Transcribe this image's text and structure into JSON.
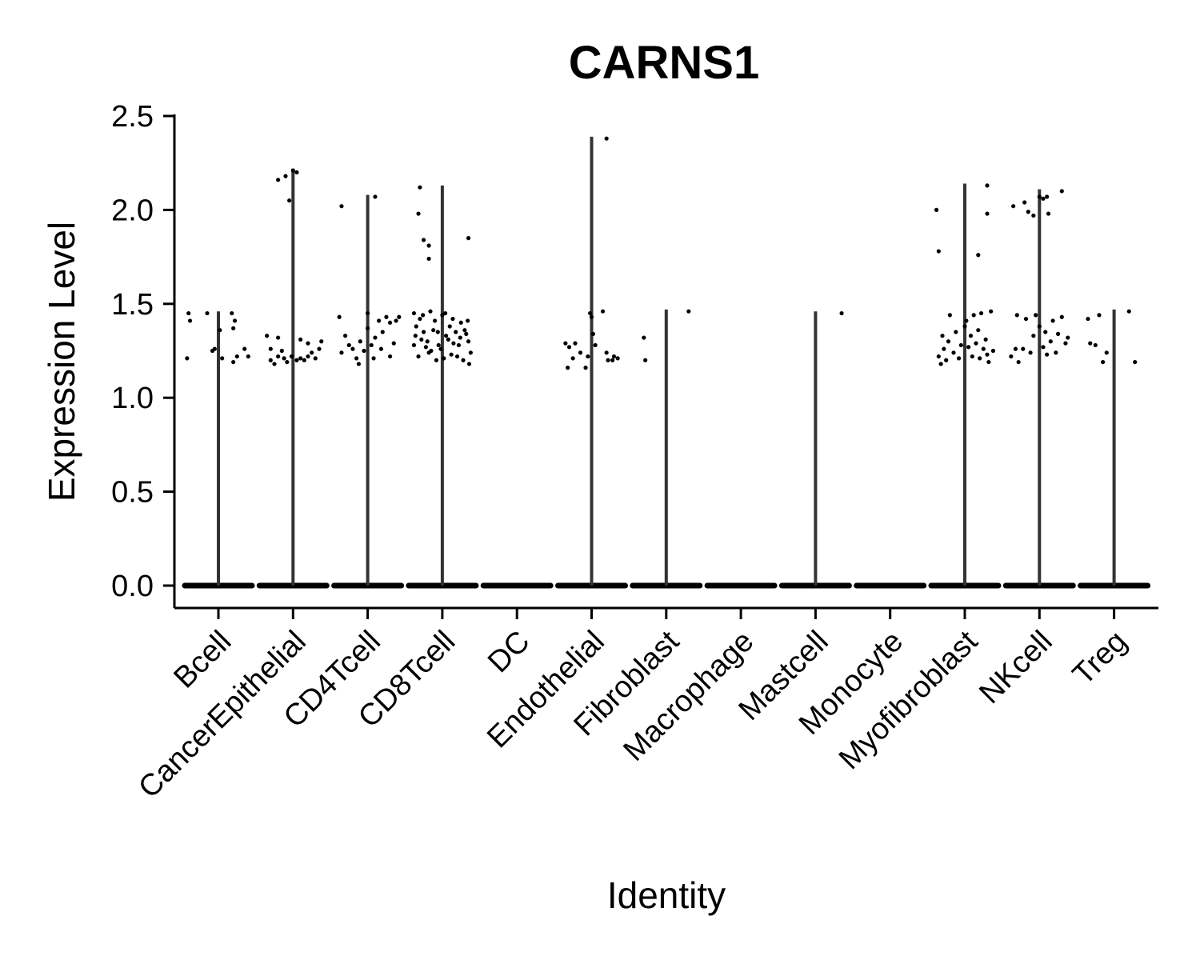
{
  "chart_data": {
    "type": "violin",
    "title": "CARNS1",
    "xlabel": "Identity",
    "ylabel": "Expression Level",
    "ylim": [
      -0.12,
      2.5
    ],
    "yticks": [
      0.0,
      0.5,
      1.0,
      1.5,
      2.0,
      2.5
    ],
    "ytick_labels": [
      "0.0",
      "0.5",
      "1.0",
      "1.5",
      "2.0",
      "2.5"
    ],
    "grid": false,
    "legend": "none",
    "point_color": "#000000",
    "violin_color": "#333333",
    "categories": [
      "Bcell",
      "CancerEpithelial",
      "CD4Tcell",
      "CD8Tcell",
      "DC",
      "Endothelial",
      "Fibroblast",
      "Macrophage",
      "Mastcell",
      "Monocyte",
      "Myofibroblast",
      "NKcell",
      "Treg"
    ],
    "max_values": [
      1.46,
      2.22,
      2.08,
      2.13,
      0.0,
      2.39,
      1.47,
      0.0,
      1.46,
      0.0,
      2.14,
      2.11,
      1.47
    ],
    "points": [
      [
        [
          -0.4,
          1.45
        ],
        [
          -0.38,
          1.41
        ],
        [
          -0.42,
          1.21
        ],
        [
          -0.15,
          1.45
        ],
        [
          0.02,
          1.36
        ],
        [
          -0.05,
          1.26
        ],
        [
          0.2,
          1.19
        ],
        [
          0.18,
          1.45
        ],
        [
          0.22,
          1.41
        ],
        [
          0.2,
          1.37
        ],
        [
          0.25,
          1.22
        ],
        [
          0.35,
          1.26
        ],
        [
          0.4,
          1.22
        ],
        [
          -0.08,
          1.25
        ],
        [
          0.05,
          1.21
        ]
      ],
      [
        [
          -0.35,
          1.33
        ],
        [
          -0.2,
          1.32
        ],
        [
          -0.2,
          2.16
        ],
        [
          -0.1,
          2.18
        ],
        [
          -0.05,
          2.05
        ],
        [
          0.0,
          2.21
        ],
        [
          0.05,
          2.2
        ],
        [
          -0.3,
          1.2
        ],
        [
          -0.25,
          1.18
        ],
        [
          -0.2,
          1.22
        ],
        [
          -0.15,
          1.25
        ],
        [
          -0.12,
          1.21
        ],
        [
          -0.08,
          1.19
        ],
        [
          -0.02,
          1.22
        ],
        [
          0.05,
          1.2
        ],
        [
          0.1,
          1.21
        ],
        [
          0.15,
          1.2
        ],
        [
          0.2,
          1.22
        ],
        [
          0.25,
          1.24
        ],
        [
          0.3,
          1.21
        ],
        [
          0.35,
          1.26
        ],
        [
          0.38,
          1.3
        ],
        [
          0.1,
          1.31
        ],
        [
          0.2,
          1.29
        ],
        [
          -0.3,
          1.26
        ]
      ],
      [
        [
          -0.35,
          2.02
        ],
        [
          0.1,
          2.07
        ],
        [
          -0.38,
          1.43
        ],
        [
          -0.35,
          1.24
        ],
        [
          -0.3,
          1.33
        ],
        [
          -0.25,
          1.28
        ],
        [
          -0.2,
          1.26
        ],
        [
          -0.15,
          1.21
        ],
        [
          -0.1,
          1.3
        ],
        [
          -0.05,
          1.25
        ],
        [
          0.0,
          1.37
        ],
        [
          0.05,
          1.28
        ],
        [
          0.08,
          1.21
        ],
        [
          0.1,
          1.32
        ],
        [
          0.15,
          1.41
        ],
        [
          0.2,
          1.35
        ],
        [
          0.25,
          1.43
        ],
        [
          0.3,
          1.22
        ],
        [
          0.35,
          1.29
        ],
        [
          0.38,
          1.41
        ],
        [
          0.42,
          1.43
        ],
        [
          0.3,
          1.4
        ],
        [
          0.0,
          1.45
        ],
        [
          -0.12,
          1.18
        ],
        [
          0.18,
          1.26
        ]
      ],
      [
        [
          -0.3,
          2.12
        ],
        [
          -0.32,
          1.98
        ],
        [
          -0.25,
          1.84
        ],
        [
          -0.18,
          1.81
        ],
        [
          -0.18,
          1.74
        ],
        [
          0.35,
          1.85
        ],
        [
          -0.38,
          1.45
        ],
        [
          -0.35,
          1.38
        ],
        [
          -0.3,
          1.42
        ],
        [
          -0.25,
          1.35
        ],
        [
          -0.2,
          1.3
        ],
        [
          -0.15,
          1.25
        ],
        [
          -0.1,
          1.41
        ],
        [
          -0.05,
          1.28
        ],
        [
          0.0,
          1.44
        ],
        [
          0.05,
          1.33
        ],
        [
          0.1,
          1.38
        ],
        [
          0.15,
          1.29
        ],
        [
          0.2,
          1.22
        ],
        [
          0.25,
          1.4
        ],
        [
          0.3,
          1.36
        ],
        [
          0.35,
          1.3
        ],
        [
          0.38,
          1.24
        ],
        [
          -0.38,
          1.28
        ],
        [
          -0.32,
          1.22
        ],
        [
          -0.28,
          1.31
        ],
        [
          -0.22,
          1.27
        ],
        [
          -0.18,
          1.24
        ],
        [
          -0.12,
          1.36
        ],
        [
          -0.08,
          1.2
        ],
        [
          -0.02,
          1.26
        ],
        [
          0.02,
          1.21
        ],
        [
          0.08,
          1.31
        ],
        [
          0.12,
          1.23
        ],
        [
          0.18,
          1.35
        ],
        [
          0.22,
          1.28
        ],
        [
          0.28,
          1.2
        ],
        [
          0.32,
          1.34
        ],
        [
          0.36,
          1.18
        ],
        [
          -0.36,
          1.33
        ],
        [
          -0.26,
          1.44
        ],
        [
          -0.16,
          1.46
        ],
        [
          -0.06,
          1.35
        ],
        [
          0.04,
          1.45
        ],
        [
          0.14,
          1.42
        ],
        [
          0.24,
          1.32
        ],
        [
          0.34,
          1.41
        ]
      ],
      [],
      [
        [
          -0.35,
          1.29
        ],
        [
          -0.32,
          1.16
        ],
        [
          -0.3,
          1.27
        ],
        [
          -0.25,
          1.21
        ],
        [
          -0.22,
          1.29
        ],
        [
          -0.15,
          1.24
        ],
        [
          -0.08,
          1.16
        ],
        [
          -0.05,
          1.22
        ],
        [
          0.0,
          1.43
        ],
        [
          0.02,
          1.34
        ],
        [
          0.05,
          1.28
        ],
        [
          0.15,
          1.46
        ],
        [
          0.2,
          1.24
        ],
        [
          0.22,
          1.2
        ],
        [
          0.28,
          1.2
        ],
        [
          0.3,
          1.22
        ],
        [
          0.35,
          1.21
        ],
        [
          0.2,
          2.38
        ],
        [
          -0.02,
          1.45
        ]
      ],
      [
        [
          -0.3,
          1.32
        ],
        [
          -0.28,
          1.2
        ],
        [
          0.3,
          1.46
        ]
      ],
      [],
      [
        [
          0.35,
          1.45
        ]
      ],
      [],
      [
        [
          -0.38,
          2.0
        ],
        [
          -0.35,
          1.78
        ],
        [
          0.18,
          1.76
        ],
        [
          0.3,
          2.13
        ],
        [
          0.3,
          1.98
        ],
        [
          -0.35,
          1.22
        ],
        [
          -0.32,
          1.18
        ],
        [
          -0.28,
          1.26
        ],
        [
          -0.25,
          1.2
        ],
        [
          -0.22,
          1.3
        ],
        [
          -0.2,
          1.44
        ],
        [
          -0.15,
          1.24
        ],
        [
          -0.12,
          1.35
        ],
        [
          -0.08,
          1.21
        ],
        [
          -0.05,
          1.28
        ],
        [
          0.0,
          1.38
        ],
        [
          0.02,
          1.41
        ],
        [
          0.05,
          1.27
        ],
        [
          0.08,
          1.33
        ],
        [
          0.1,
          1.22
        ],
        [
          0.12,
          1.44
        ],
        [
          0.15,
          1.29
        ],
        [
          0.18,
          1.36
        ],
        [
          0.2,
          1.21
        ],
        [
          0.22,
          1.45
        ],
        [
          0.25,
          1.26
        ],
        [
          0.28,
          1.31
        ],
        [
          0.3,
          1.23
        ],
        [
          0.35,
          1.46
        ],
        [
          0.38,
          1.25
        ],
        [
          -0.3,
          1.33
        ],
        [
          0.32,
          1.19
        ]
      ],
      [
        [
          -0.35,
          2.02
        ],
        [
          -0.3,
          1.44
        ],
        [
          -0.38,
          1.22
        ],
        [
          -0.32,
          1.26
        ],
        [
          -0.2,
          2.04
        ],
        [
          -0.15,
          1.99
        ],
        [
          -0.08,
          1.97
        ],
        [
          0.0,
          2.07
        ],
        [
          0.05,
          2.06
        ],
        [
          0.1,
          2.07
        ],
        [
          0.12,
          1.98
        ],
        [
          0.3,
          2.1
        ],
        [
          -0.28,
          1.19
        ],
        [
          -0.22,
          1.26
        ],
        [
          -0.18,
          1.42
        ],
        [
          -0.12,
          1.24
        ],
        [
          -0.08,
          1.33
        ],
        [
          -0.05,
          1.44
        ],
        [
          0.0,
          1.38
        ],
        [
          0.05,
          1.27
        ],
        [
          0.08,
          1.35
        ],
        [
          0.1,
          1.23
        ],
        [
          0.15,
          1.3
        ],
        [
          0.18,
          1.41
        ],
        [
          0.22,
          1.24
        ],
        [
          0.25,
          1.34
        ],
        [
          0.3,
          1.43
        ],
        [
          0.35,
          1.29
        ],
        [
          0.38,
          1.32
        ]
      ],
      [
        [
          -0.35,
          1.42
        ],
        [
          -0.32,
          1.29
        ],
        [
          -0.25,
          1.28
        ],
        [
          -0.2,
          1.44
        ],
        [
          -0.15,
          1.19
        ],
        [
          -0.1,
          1.24
        ],
        [
          0.2,
          1.46
        ],
        [
          0.28,
          1.19
        ]
      ]
    ]
  }
}
